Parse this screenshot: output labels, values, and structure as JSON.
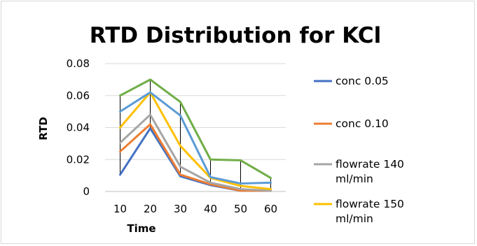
{
  "chart_data": {
    "type": "line",
    "title": "RTD Distribution for KCl",
    "xlabel": "Time",
    "ylabel": "RTD",
    "categories": [
      "10",
      "20",
      "30",
      "40",
      "50",
      "60"
    ],
    "yticks": [
      "0",
      "0.02",
      "0.04",
      "0.06",
      "0.08"
    ],
    "ylim": [
      0,
      0.08
    ],
    "grid": true,
    "legend_position": "right",
    "drop_lines": true,
    "series": [
      {
        "name": "conc 0.05",
        "color": "#4472c4",
        "values": [
          0.0105,
          0.0395,
          0.0095,
          0.004,
          0.0005,
          0.0005
        ]
      },
      {
        "name": "conc 0.10",
        "color": "#ed7d31",
        "values": [
          0.025,
          0.042,
          0.0105,
          0.0045,
          0.0005,
          0.0005
        ]
      },
      {
        "name": "flowrate 140 ml/min",
        "color": "#a5a5a5",
        "values": [
          0.0305,
          0.048,
          0.0155,
          0.0055,
          0.0015,
          0.0005
        ]
      },
      {
        "name": "flowrate 150 ml/min",
        "color": "#ffc000",
        "values": [
          0.04,
          0.062,
          0.0285,
          0.0085,
          0.0035,
          0.0015
        ]
      },
      {
        "name": "",
        "color": "#5b9bd5",
        "values": [
          0.05,
          0.062,
          0.0475,
          0.009,
          0.005,
          0.0055
        ]
      },
      {
        "name": "",
        "color": "#70ad47",
        "values": [
          0.06,
          0.07,
          0.056,
          0.02,
          0.0195,
          0.0085
        ]
      }
    ]
  }
}
